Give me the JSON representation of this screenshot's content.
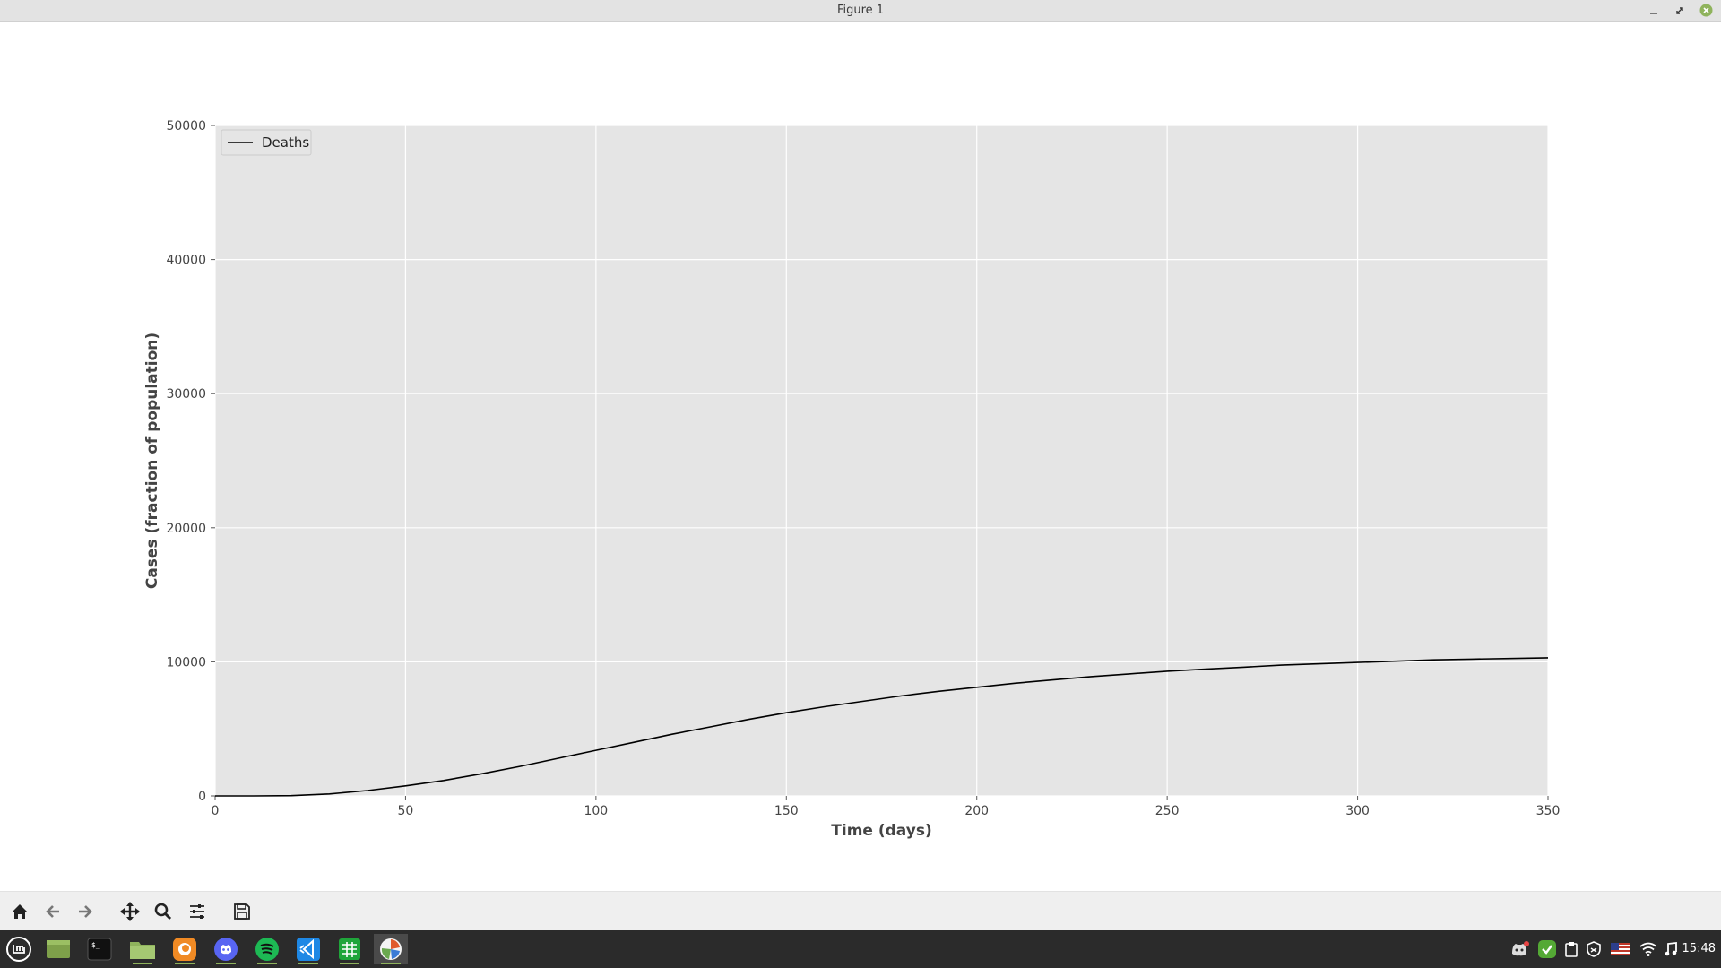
{
  "window": {
    "title": "Figure 1",
    "controls": [
      "minimize-icon",
      "restore-icon",
      "close-icon"
    ]
  },
  "chart_data": {
    "type": "line",
    "title": "",
    "xlabel": "Time (days)",
    "ylabel": "Cases (fraction of population)",
    "xlim": [
      0,
      350
    ],
    "ylim": [
      0,
      50000
    ],
    "xticks": [
      0,
      50,
      100,
      150,
      200,
      250,
      300,
      350
    ],
    "yticks": [
      0,
      10000,
      20000,
      30000,
      40000,
      50000
    ],
    "grid": true,
    "legend_position": "top-left",
    "background": "#e5e5e5",
    "series": [
      {
        "name": "Deaths",
        "color": "#000000",
        "x": [
          0,
          10,
          20,
          30,
          40,
          50,
          60,
          70,
          80,
          90,
          100,
          110,
          120,
          130,
          140,
          150,
          160,
          170,
          180,
          190,
          200,
          210,
          220,
          230,
          240,
          250,
          260,
          270,
          280,
          290,
          300,
          310,
          320,
          330,
          340,
          350
        ],
        "y": [
          0,
          0,
          20,
          150,
          400,
          750,
          1150,
          1650,
          2200,
          2800,
          3400,
          4000,
          4600,
          5150,
          5700,
          6200,
          6650,
          7050,
          7450,
          7800,
          8100,
          8400,
          8650,
          8900,
          9100,
          9300,
          9450,
          9600,
          9750,
          9850,
          9950,
          10050,
          10150,
          10200,
          10250,
          10300
        ]
      }
    ]
  },
  "toolbar": {
    "tools": [
      "home-icon",
      "back-icon",
      "forward-icon",
      "pan-icon",
      "zoom-icon",
      "configure-icon",
      "save-icon"
    ]
  },
  "taskbar": {
    "apps": [
      "mint-menu-icon",
      "show-desktop-icon",
      "terminal-icon",
      "files-icon",
      "firefox-icon",
      "discord-icon",
      "spotify-icon",
      "vscode-icon",
      "spreadsheet-icon",
      "figure-app-icon"
    ],
    "tray": [
      "discord-tray-icon",
      "update-check-icon",
      "clipboard-icon",
      "shield-icon",
      "us-flag-icon",
      "wifi-icon",
      "music-note-icon"
    ],
    "clock": "15:48"
  }
}
